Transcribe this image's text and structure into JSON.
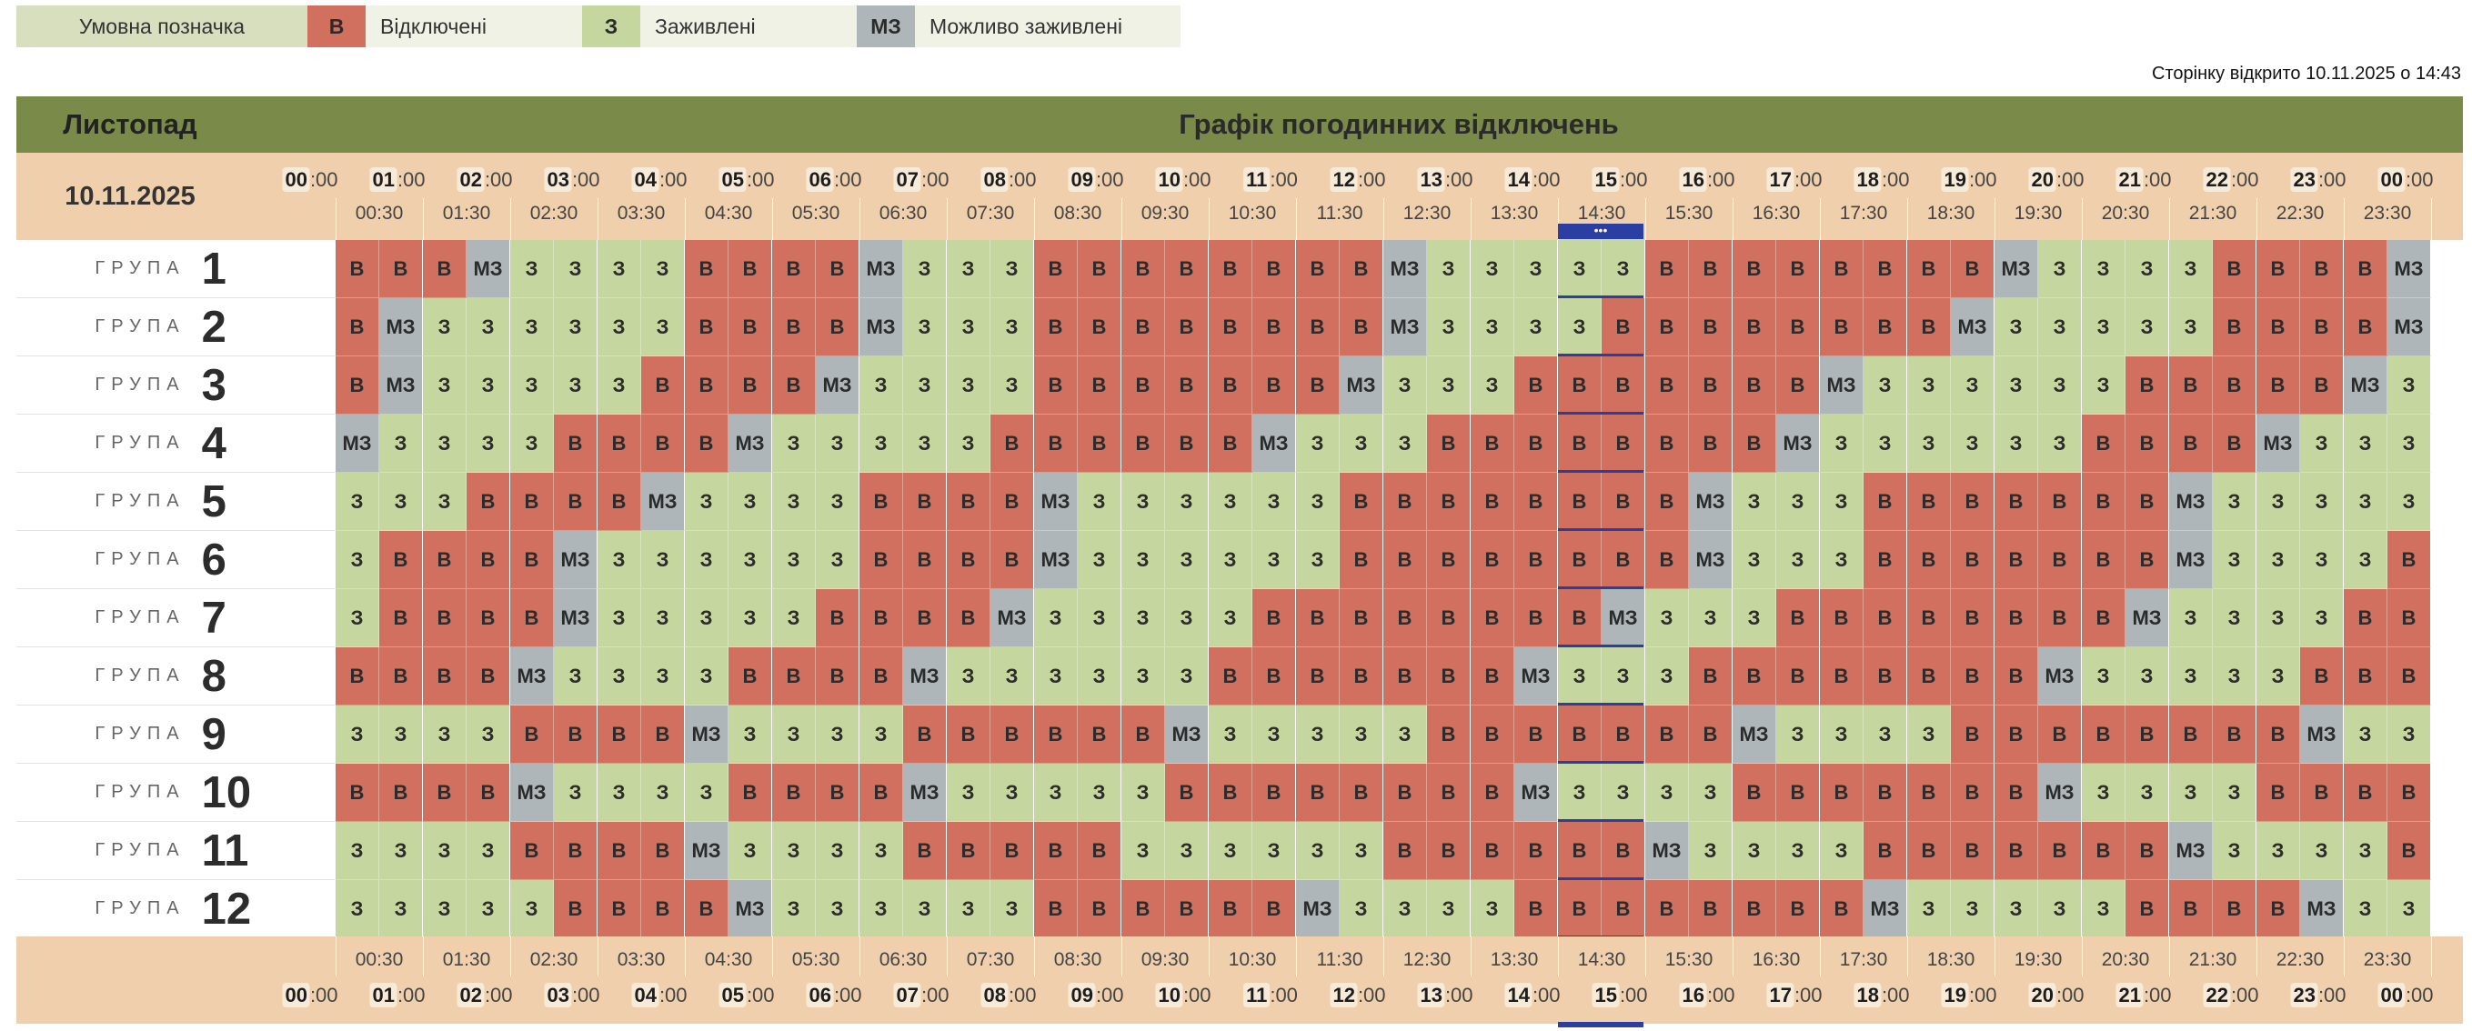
{
  "legend": {
    "title": "Умовна позначка",
    "items": [
      {
        "symbol": "В",
        "label": "Відключені",
        "color": "#d27060"
      },
      {
        "symbol": "З",
        "label": "Заживлені",
        "color": "#c5d69e"
      },
      {
        "symbol": "МЗ",
        "label": "Можливо заживлені",
        "color": "#aeb6b9"
      }
    ]
  },
  "opened_text": "Сторінку відкрито 10.11.2025 о 14:43",
  "header": {
    "month": "Листопад",
    "title": "Графік погодинних відключень",
    "color": "#7a8a48"
  },
  "date": "10.11.2025",
  "group_word": "ГРУПА",
  "current_indicator": "•••",
  "hours": [
    "00",
    "01",
    "02",
    "03",
    "04",
    "05",
    "06",
    "07",
    "08",
    "09",
    "10",
    "11",
    "12",
    "13",
    "14",
    "15",
    "16",
    "17",
    "18",
    "19",
    "20",
    "21",
    "22",
    "23",
    "00"
  ],
  "half_hours": [
    "00:30",
    "01:30",
    "02:30",
    "03:30",
    "04:30",
    "05:30",
    "06:30",
    "07:30",
    "08:30",
    "09:30",
    "10:30",
    "11:30",
    "12:30",
    "13:30",
    "14:30",
    "15:30",
    "16:30",
    "17:30",
    "18:30",
    "19:30",
    "20:30",
    "21:30",
    "22:30",
    "23:30"
  ],
  "minutes_suffix": ":00",
  "groups": [
    {
      "number": "1",
      "cells": [
        "В",
        "В",
        "В",
        "МЗ",
        "З",
        "З",
        "З",
        "З",
        "В",
        "В",
        "В",
        "В",
        "МЗ",
        "З",
        "З",
        "З",
        "В",
        "В",
        "В",
        "В",
        "В",
        "В",
        "В",
        "В",
        "МЗ",
        "З",
        "З",
        "З",
        "З",
        "З",
        "В",
        "В",
        "В",
        "В",
        "В",
        "В",
        "В",
        "В",
        "МЗ",
        "З",
        "З",
        "З",
        "З",
        "В",
        "В",
        "В",
        "В",
        "МЗ"
      ]
    },
    {
      "number": "2",
      "cells": [
        "В",
        "МЗ",
        "З",
        "З",
        "З",
        "З",
        "З",
        "З",
        "В",
        "В",
        "В",
        "В",
        "МЗ",
        "З",
        "З",
        "З",
        "В",
        "В",
        "В",
        "В",
        "В",
        "В",
        "В",
        "В",
        "МЗ",
        "З",
        "З",
        "З",
        "З",
        "В",
        "В",
        "В",
        "В",
        "В",
        "В",
        "В",
        "В",
        "МЗ",
        "З",
        "З",
        "З",
        "З",
        "З",
        "В",
        "В",
        "В",
        "В",
        "МЗ"
      ]
    },
    {
      "number": "3",
      "cells": [
        "В",
        "МЗ",
        "З",
        "З",
        "З",
        "З",
        "З",
        "В",
        "В",
        "В",
        "В",
        "МЗ",
        "З",
        "З",
        "З",
        "З",
        "В",
        "В",
        "В",
        "В",
        "В",
        "В",
        "В",
        "МЗ",
        "З",
        "З",
        "З",
        "В",
        "В",
        "В",
        "В",
        "В",
        "В",
        "В",
        "МЗ",
        "З",
        "З",
        "З",
        "З",
        "З",
        "З",
        "В",
        "В",
        "В",
        "В",
        "В",
        "МЗ",
        "З"
      ]
    },
    {
      "number": "4",
      "cells": [
        "МЗ",
        "З",
        "З",
        "З",
        "З",
        "В",
        "В",
        "В",
        "В",
        "МЗ",
        "З",
        "З",
        "З",
        "З",
        "З",
        "В",
        "В",
        "В",
        "В",
        "В",
        "В",
        "МЗ",
        "З",
        "З",
        "З",
        "В",
        "В",
        "В",
        "В",
        "В",
        "В",
        "В",
        "В",
        "МЗ",
        "З",
        "З",
        "З",
        "З",
        "З",
        "З",
        "В",
        "В",
        "В",
        "В",
        "МЗ",
        "З",
        "З",
        "З"
      ]
    },
    {
      "number": "5",
      "cells": [
        "З",
        "З",
        "З",
        "В",
        "В",
        "В",
        "В",
        "МЗ",
        "З",
        "З",
        "З",
        "З",
        "В",
        "В",
        "В",
        "В",
        "МЗ",
        "З",
        "З",
        "З",
        "З",
        "З",
        "З",
        "В",
        "В",
        "В",
        "В",
        "В",
        "В",
        "В",
        "В",
        "МЗ",
        "З",
        "З",
        "З",
        "В",
        "В",
        "В",
        "В",
        "В",
        "В",
        "В",
        "МЗ",
        "З",
        "З",
        "З",
        "З",
        "З"
      ]
    },
    {
      "number": "6",
      "cells": [
        "З",
        "В",
        "В",
        "В",
        "В",
        "МЗ",
        "З",
        "З",
        "З",
        "З",
        "З",
        "З",
        "В",
        "В",
        "В",
        "В",
        "МЗ",
        "З",
        "З",
        "З",
        "З",
        "З",
        "З",
        "В",
        "В",
        "В",
        "В",
        "В",
        "В",
        "В",
        "В",
        "МЗ",
        "З",
        "З",
        "З",
        "В",
        "В",
        "В",
        "В",
        "В",
        "В",
        "В",
        "МЗ",
        "З",
        "З",
        "З",
        "З",
        "В"
      ]
    },
    {
      "number": "7",
      "cells": [
        "З",
        "В",
        "В",
        "В",
        "В",
        "МЗ",
        "З",
        "З",
        "З",
        "З",
        "З",
        "В",
        "В",
        "В",
        "В",
        "МЗ",
        "З",
        "З",
        "З",
        "З",
        "З",
        "В",
        "В",
        "В",
        "В",
        "В",
        "В",
        "В",
        "В",
        "МЗ",
        "З",
        "З",
        "З",
        "В",
        "В",
        "В",
        "В",
        "В",
        "В",
        "В",
        "В",
        "МЗ",
        "З",
        "З",
        "З",
        "З",
        "В",
        "В"
      ]
    },
    {
      "number": "8",
      "cells": [
        "В",
        "В",
        "В",
        "В",
        "МЗ",
        "З",
        "З",
        "З",
        "З",
        "В",
        "В",
        "В",
        "В",
        "МЗ",
        "З",
        "З",
        "З",
        "З",
        "З",
        "З",
        "В",
        "В",
        "В",
        "В",
        "В",
        "В",
        "В",
        "МЗ",
        "З",
        "З",
        "З",
        "В",
        "В",
        "В",
        "В",
        "В",
        "В",
        "В",
        "В",
        "МЗ",
        "З",
        "З",
        "З",
        "З",
        "З",
        "В",
        "В",
        "В"
      ]
    },
    {
      "number": "9",
      "cells": [
        "З",
        "З",
        "З",
        "З",
        "В",
        "В",
        "В",
        "В",
        "МЗ",
        "З",
        "З",
        "З",
        "З",
        "В",
        "В",
        "В",
        "В",
        "В",
        "В",
        "МЗ",
        "З",
        "З",
        "З",
        "З",
        "З",
        "В",
        "В",
        "В",
        "В",
        "В",
        "В",
        "В",
        "МЗ",
        "З",
        "З",
        "З",
        "З",
        "В",
        "В",
        "В",
        "В",
        "В",
        "В",
        "В",
        "В",
        "МЗ",
        "З",
        "З"
      ]
    },
    {
      "number": "10",
      "cells": [
        "В",
        "В",
        "В",
        "В",
        "МЗ",
        "З",
        "З",
        "З",
        "З",
        "В",
        "В",
        "В",
        "В",
        "МЗ",
        "З",
        "З",
        "З",
        "З",
        "З",
        "В",
        "В",
        "В",
        "В",
        "В",
        "В",
        "В",
        "В",
        "МЗ",
        "З",
        "З",
        "З",
        "З",
        "В",
        "В",
        "В",
        "В",
        "В",
        "В",
        "В",
        "МЗ",
        "З",
        "З",
        "З",
        "З",
        "В",
        "В",
        "В",
        "В"
      ]
    },
    {
      "number": "11",
      "cells": [
        "З",
        "З",
        "З",
        "З",
        "В",
        "В",
        "В",
        "В",
        "МЗ",
        "З",
        "З",
        "З",
        "З",
        "В",
        "В",
        "В",
        "В",
        "В",
        "З",
        "З",
        "З",
        "З",
        "З",
        "З",
        "В",
        "В",
        "В",
        "В",
        "В",
        "В",
        "МЗ",
        "З",
        "З",
        "З",
        "З",
        "В",
        "В",
        "В",
        "В",
        "В",
        "В",
        "В",
        "МЗ",
        "З",
        "З",
        "З",
        "З",
        "В"
      ]
    },
    {
      "number": "12",
      "cells": [
        "З",
        "З",
        "З",
        "З",
        "З",
        "В",
        "В",
        "В",
        "В",
        "МЗ",
        "З",
        "З",
        "З",
        "З",
        "З",
        "З",
        "В",
        "В",
        "В",
        "В",
        "В",
        "В",
        "МЗ",
        "З",
        "З",
        "З",
        "З",
        "В",
        "В",
        "В",
        "В",
        "В",
        "В",
        "В",
        "В",
        "МЗ",
        "З",
        "З",
        "З",
        "З",
        "З",
        "В",
        "В",
        "В",
        "В",
        "МЗ",
        "З",
        "З"
      ]
    }
  ]
}
